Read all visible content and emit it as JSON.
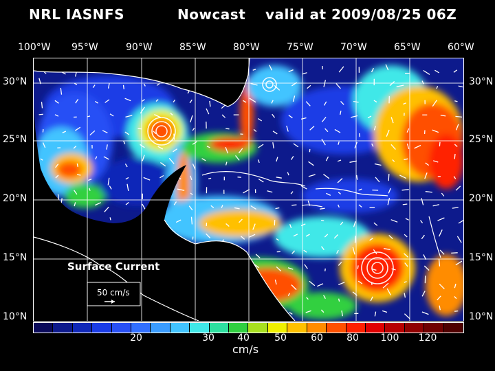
{
  "header": {
    "source": "NRL IASNFS",
    "product": "Nowcast",
    "valid_time": "valid at 2009/08/25 06Z"
  },
  "axes": {
    "longitudes": [
      "100°W",
      "95°W",
      "90°W",
      "85°W",
      "80°W",
      "75°W",
      "70°W",
      "65°W",
      "60°W"
    ],
    "latitudes": [
      "30°N",
      "25°N",
      "20°N",
      "15°N",
      "10°N"
    ]
  },
  "legend": {
    "title": "Surface Current",
    "reference_vector": "50 cm/s"
  },
  "colorbar": {
    "unit": "cm/s",
    "ticks": [
      "20",
      "30",
      "40",
      "50",
      "60",
      "80",
      "100",
      "120"
    ],
    "colors": [
      "#0a0a5a",
      "#0d1a8c",
      "#1028b8",
      "#1a3ce6",
      "#2850f5",
      "#3270ff",
      "#3a9cff",
      "#42c4ff",
      "#40e8e8",
      "#2ee0a0",
      "#30d040",
      "#a8e020",
      "#f0f000",
      "#ffc000",
      "#ff8c00",
      "#ff5000",
      "#ff2000",
      "#e00000",
      "#b80000",
      "#900000",
      "#700000",
      "#4e0000"
    ]
  },
  "colors": {
    "land": "#000000",
    "coastline": "#ffffff",
    "grid": "#ffffff"
  }
}
